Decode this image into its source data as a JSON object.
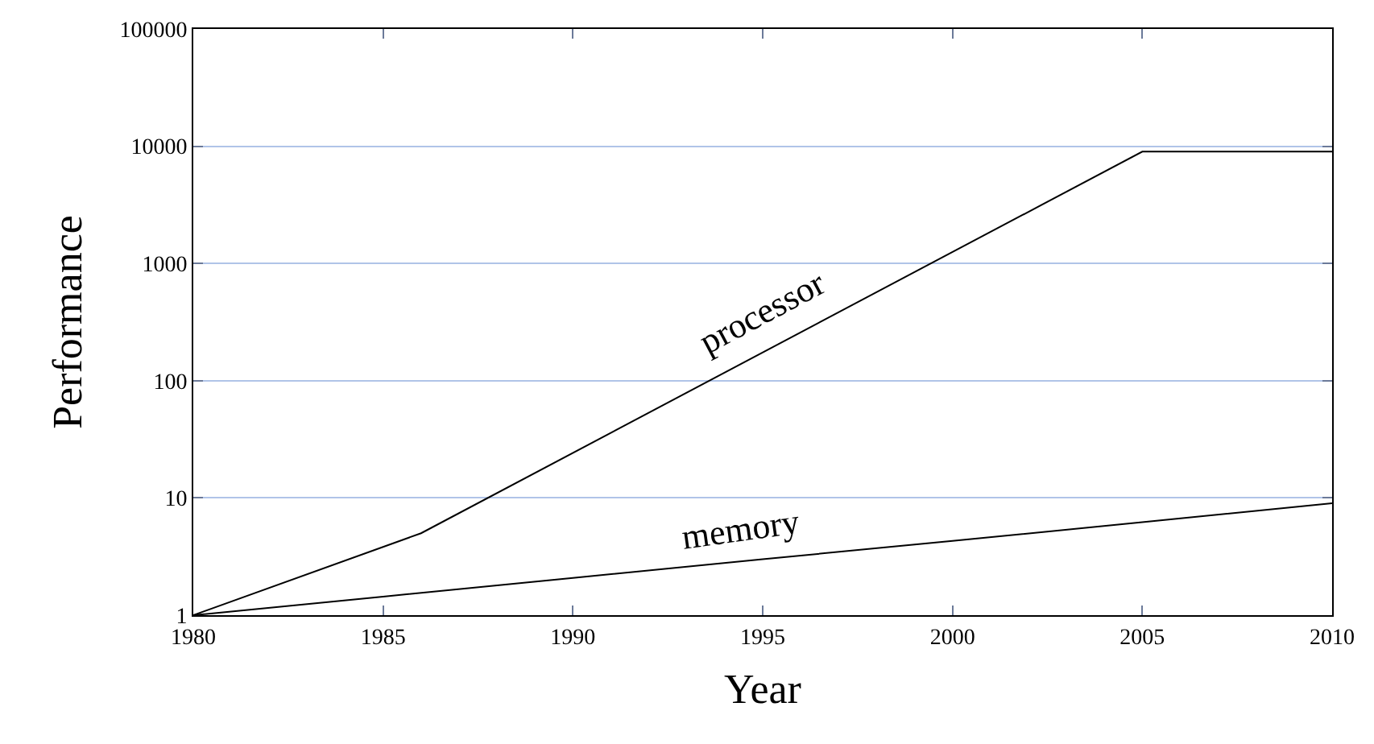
{
  "chart_data": {
    "type": "line",
    "xlabel": "Year",
    "ylabel": "Performance",
    "series": [
      {
        "name": "processor",
        "color": "#000000",
        "x": [
          1980,
          1986,
          2005,
          2010
        ],
        "values": [
          1,
          5,
          9000,
          9000
        ]
      },
      {
        "name": "memory",
        "color": "#000000",
        "x": [
          1980,
          1985,
          1990,
          1995,
          2000,
          2005,
          2010
        ],
        "values": [
          1,
          1.44,
          2.08,
          3,
          4.3,
          6.2,
          9
        ]
      }
    ],
    "xlim": [
      1980,
      2010
    ],
    "xticks": [
      1980,
      1985,
      1990,
      1995,
      2000,
      2005,
      2010
    ],
    "ylim": [
      1,
      100000
    ],
    "yticks": [
      1,
      10,
      100,
      1000,
      10000,
      100000
    ],
    "log": "y",
    "grid": "y",
    "legend": false,
    "marker": "none",
    "line_style": "solid"
  }
}
